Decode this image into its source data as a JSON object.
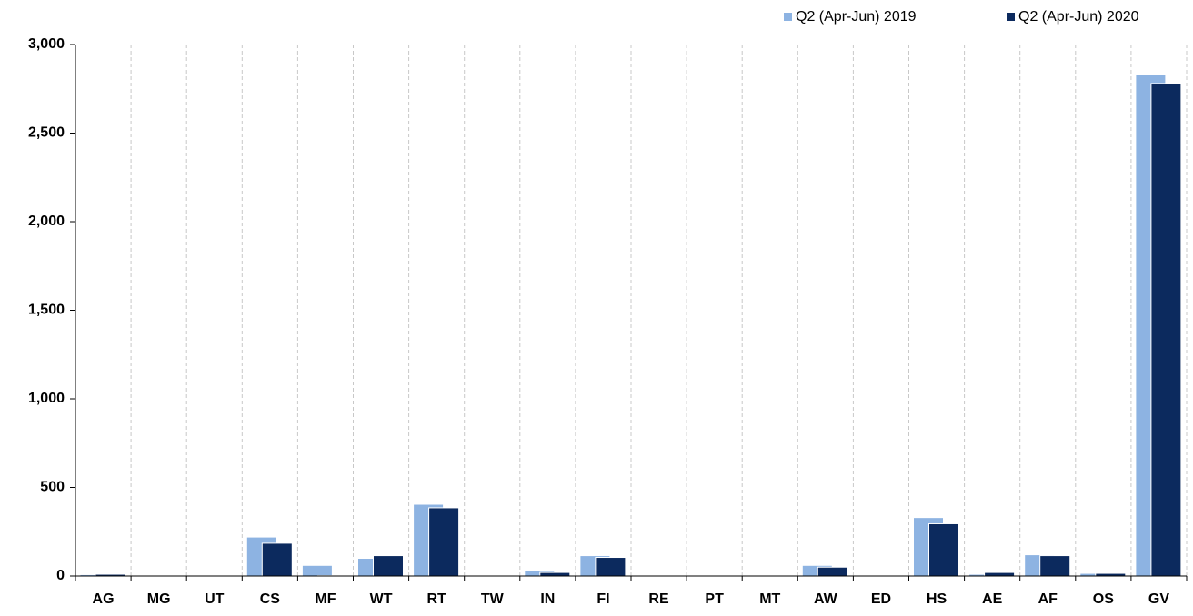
{
  "chart_data": {
    "type": "bar",
    "categories": [
      "AG",
      "MG",
      "UT",
      "CS",
      "MF",
      "WT",
      "RT",
      "TW",
      "IN",
      "FI",
      "RE",
      "PT",
      "MT",
      "AW",
      "ED",
      "HS",
      "AE",
      "AF",
      "OS",
      "GV"
    ],
    "series": [
      {
        "name": "Q2 (Apr-Jun) 2019",
        "color": "#8db3e2",
        "values": [
          8,
          2,
          2,
          220,
          60,
          100,
          405,
          2,
          30,
          115,
          0,
          0,
          0,
          60,
          0,
          330,
          10,
          120,
          15,
          2830
        ]
      },
      {
        "name": "Q2 (Apr-Jun) 2020",
        "color": "#0c2a5e",
        "values": [
          10,
          2,
          2,
          185,
          2,
          115,
          385,
          2,
          20,
          105,
          0,
          0,
          0,
          50,
          0,
          295,
          20,
          115,
          15,
          2780
        ]
      }
    ],
    "ylim": [
      0,
      3000
    ],
    "yticks": [
      0,
      500,
      {
        "value": 1000,
        "label": "1,000"
      },
      {
        "value": 1500,
        "label": "1,500"
      },
      {
        "value": 2000,
        "label": "2,000"
      },
      {
        "value": 2500,
        "label": "2,500"
      },
      {
        "value": 3000,
        "label": "3,000"
      }
    ],
    "grid": true,
    "legend": "top-right"
  }
}
